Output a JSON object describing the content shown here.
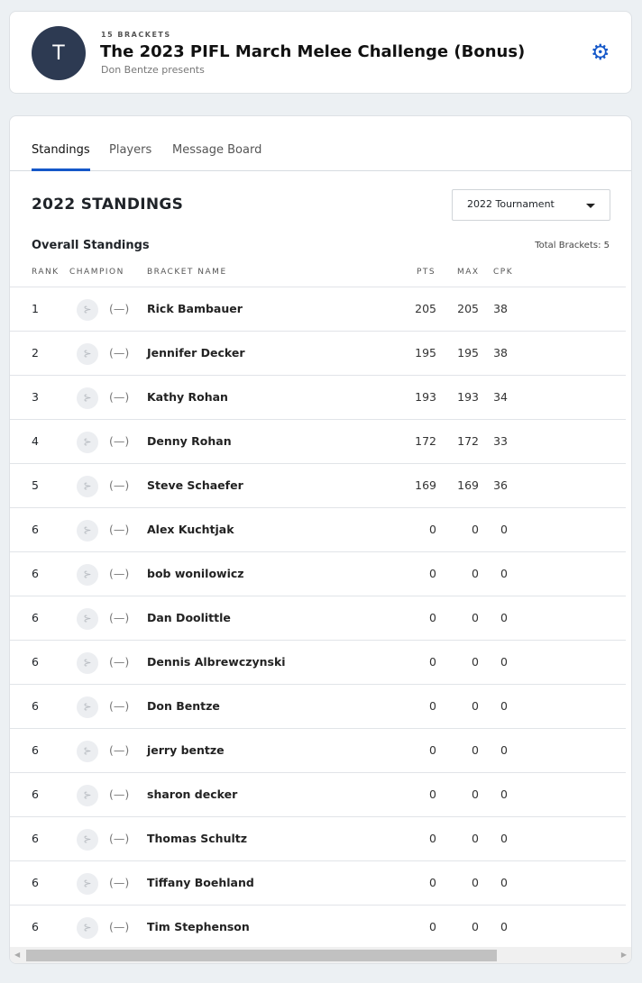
{
  "header": {
    "avatar_letter": "T",
    "bracket_count": "15 BRACKETS",
    "title": "The 2023 PIFL March Melee Challenge (Bonus)",
    "presenter": "Don Bentze presents",
    "settings_icon": "gear-icon",
    "accent": "#1558c9"
  },
  "tabs": [
    {
      "label": "Standings",
      "active": true
    },
    {
      "label": "Players"
    },
    {
      "label": "Message Board"
    }
  ],
  "standings": {
    "title": "2022 STANDINGS",
    "select_value": "2022 Tournament",
    "subtitle": "Overall Standings",
    "total": "Total Brackets: 5",
    "columns": [
      "RANK",
      "CHAMPION",
      "BRACKET NAME",
      "PTS",
      "MAX",
      "CPK"
    ],
    "rows": [
      {
        "rank": "1",
        "champion": "(—)",
        "name": "Rick Bambauer",
        "pts": "205",
        "max": "205",
        "cpk": "38"
      },
      {
        "rank": "2",
        "champion": "(—)",
        "name": "Jennifer Decker",
        "pts": "195",
        "max": "195",
        "cpk": "38"
      },
      {
        "rank": "3",
        "champion": "(—)",
        "name": "Kathy Rohan",
        "pts": "193",
        "max": "193",
        "cpk": "34"
      },
      {
        "rank": "4",
        "champion": "(—)",
        "name": "Denny Rohan",
        "pts": "172",
        "max": "172",
        "cpk": "33"
      },
      {
        "rank": "5",
        "champion": "(—)",
        "name": "Steve Schaefer",
        "pts": "169",
        "max": "169",
        "cpk": "36"
      },
      {
        "rank": "6",
        "champion": "(—)",
        "name": "Alex Kuchtjak",
        "pts": "0",
        "max": "0",
        "cpk": "0"
      },
      {
        "rank": "6",
        "champion": "(—)",
        "name": "bob wonilowicz",
        "pts": "0",
        "max": "0",
        "cpk": "0"
      },
      {
        "rank": "6",
        "champion": "(—)",
        "name": "Dan Doolittle",
        "pts": "0",
        "max": "0",
        "cpk": "0"
      },
      {
        "rank": "6",
        "champion": "(—)",
        "name": "Dennis Albrewczynski",
        "pts": "0",
        "max": "0",
        "cpk": "0"
      },
      {
        "rank": "6",
        "champion": "(—)",
        "name": "Don Bentze",
        "pts": "0",
        "max": "0",
        "cpk": "0"
      },
      {
        "rank": "6",
        "champion": "(—)",
        "name": "jerry bentze",
        "pts": "0",
        "max": "0",
        "cpk": "0"
      },
      {
        "rank": "6",
        "champion": "(—)",
        "name": "sharon decker",
        "pts": "0",
        "max": "0",
        "cpk": "0"
      },
      {
        "rank": "6",
        "champion": "(—)",
        "name": "Thomas Schultz",
        "pts": "0",
        "max": "0",
        "cpk": "0"
      },
      {
        "rank": "6",
        "champion": "(—)",
        "name": "Tiffany Boehland",
        "pts": "0",
        "max": "0",
        "cpk": "0"
      },
      {
        "rank": "6",
        "champion": "(—)",
        "name": "Tim Stephenson",
        "pts": "0",
        "max": "0",
        "cpk": "0"
      }
    ]
  }
}
